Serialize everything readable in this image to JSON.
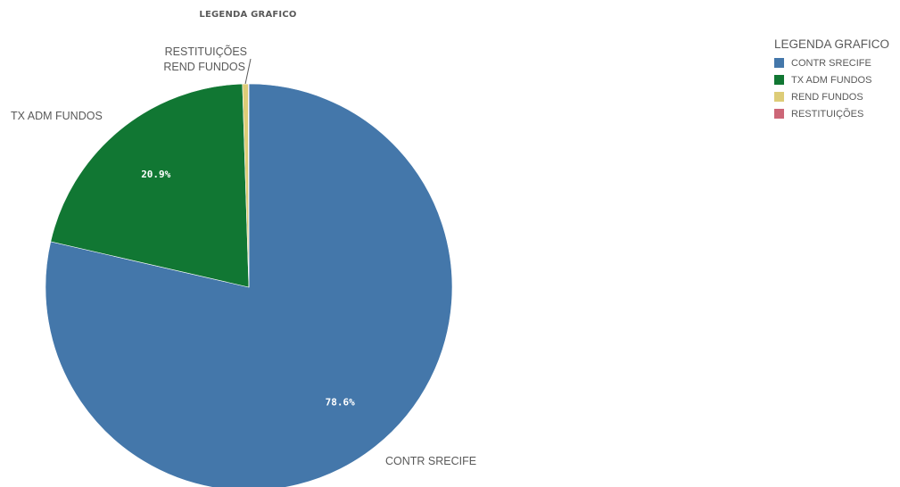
{
  "chart_data": {
    "type": "pie",
    "title": "LEGENDA GRAFICO",
    "slices": [
      {
        "label": "CONTR SRECIFE",
        "value": 78.6,
        "color": "#4477aa",
        "data_label": "78.6%"
      },
      {
        "label": "TX ADM FUNDOS",
        "value": 20.9,
        "color": "#117733",
        "data_label": "20.9%"
      },
      {
        "label": "REND FUNDOS",
        "value": 0.45,
        "color": "#ddcc77",
        "data_label": ""
      },
      {
        "label": "RESTITUIÇÕES",
        "value": 0.05,
        "color": "#cc6677",
        "data_label": ""
      }
    ],
    "legend": {
      "title": "LEGENDA GRAFICO",
      "position": "right",
      "items": [
        "CONTR SRECIFE",
        "TX ADM FUNDOS",
        "REND FUNDOS",
        "RESTITUIÇÕES"
      ]
    }
  }
}
